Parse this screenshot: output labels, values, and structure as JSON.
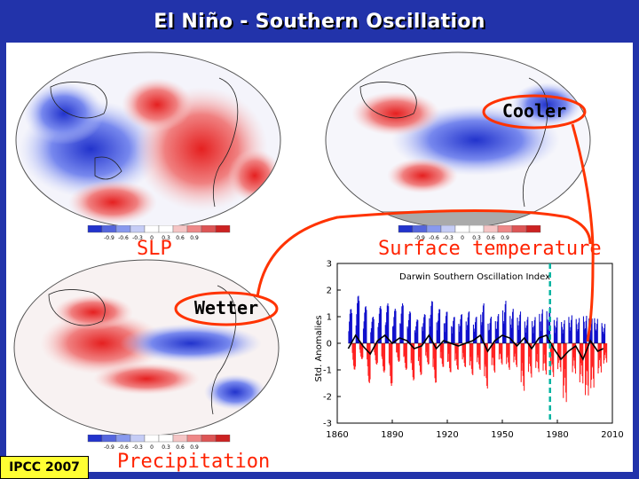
{
  "slide": {
    "title": "El Niño - Southern Oscillation",
    "credit": "IPCC 2007"
  },
  "colors": {
    "frame": "#2233aa",
    "label": "#ff2200",
    "positive_fill": "#ff2222",
    "negative_fill": "#1111cc",
    "dashed_line": "#00b3a0",
    "badge": "#ffff33"
  },
  "scale_ticks": [
    "-0.9",
    "-0.6",
    "-0.3",
    "0",
    "0.3",
    "0.6",
    "0.9"
  ],
  "panels": [
    {
      "label": "SLP"
    },
    {
      "label": "Surface temperature"
    },
    {
      "label": "Precipitation"
    }
  ],
  "callouts": {
    "cooler": "Cooler",
    "wetter": "Wetter"
  },
  "chart_data": {
    "type": "bar",
    "title": "Darwin Southern Oscillation Index",
    "ylabel": "Std. Anomalies",
    "xlabel": "",
    "xlim": [
      1860,
      2010
    ],
    "ylim": [
      -3,
      3
    ],
    "xticks": [
      1860,
      1890,
      1920,
      1950,
      1980,
      2010
    ],
    "yticks": [
      3,
      2,
      1,
      0,
      -1,
      -2,
      -3
    ],
    "x_tick_labels": [
      "1860",
      "1890",
      "1920",
      "1950",
      "1980",
      "2010"
    ],
    "y_tick_labels": [
      "3",
      "2",
      "1",
      "0",
      "-1",
      "-2",
      "-3"
    ],
    "marker_year": 1976,
    "series_note": "Monthly anomalies (positive = blue, negative = red) with smoothed black line; approximate values",
    "smoothed": [
      [
        1866,
        -0.2
      ],
      [
        1870,
        0.3
      ],
      [
        1874,
        -0.1
      ],
      [
        1878,
        -0.4
      ],
      [
        1882,
        0.1
      ],
      [
        1886,
        0.3
      ],
      [
        1890,
        0.0
      ],
      [
        1894,
        0.2
      ],
      [
        1898,
        0.1
      ],
      [
        1902,
        -0.2
      ],
      [
        1906,
        -0.1
      ],
      [
        1910,
        0.3
      ],
      [
        1914,
        -0.2
      ],
      [
        1918,
        0.1
      ],
      [
        1922,
        0.0
      ],
      [
        1926,
        -0.1
      ],
      [
        1930,
        0.0
      ],
      [
        1934,
        0.1
      ],
      [
        1938,
        0.3
      ],
      [
        1942,
        -0.3
      ],
      [
        1946,
        0.1
      ],
      [
        1950,
        0.3
      ],
      [
        1954,
        0.2
      ],
      [
        1958,
        -0.1
      ],
      [
        1962,
        0.2
      ],
      [
        1966,
        -0.2
      ],
      [
        1970,
        0.2
      ],
      [
        1974,
        0.3
      ],
      [
        1978,
        -0.2
      ],
      [
        1982,
        -0.6
      ],
      [
        1986,
        -0.3
      ],
      [
        1990,
        -0.1
      ],
      [
        1994,
        -0.6
      ],
      [
        1998,
        0.1
      ],
      [
        2002,
        -0.3
      ],
      [
        2005,
        -0.2
      ]
    ],
    "monthly_envelope": [
      [
        1866,
        1.3
      ],
      [
        1868,
        -1.0
      ],
      [
        1870,
        1.8
      ],
      [
        1872,
        -0.6
      ],
      [
        1874,
        1.4
      ],
      [
        1876,
        -1.5
      ],
      [
        1878,
        1.0
      ],
      [
        1880,
        -0.8
      ],
      [
        1882,
        1.4
      ],
      [
        1884,
        -1.1
      ],
      [
        1886,
        1.5
      ],
      [
        1888,
        -1.6
      ],
      [
        1890,
        1.3
      ],
      [
        1892,
        -0.7
      ],
      [
        1894,
        1.5
      ],
      [
        1896,
        -1.0
      ],
      [
        1898,
        1.2
      ],
      [
        1900,
        -1.4
      ],
      [
        1902,
        0.9
      ],
      [
        1904,
        -1.2
      ],
      [
        1906,
        1.1
      ],
      [
        1908,
        -0.8
      ],
      [
        1910,
        1.6
      ],
      [
        1912,
        -1.5
      ],
      [
        1914,
        1.3
      ],
      [
        1916,
        -0.9
      ],
      [
        1918,
        1.2
      ],
      [
        1920,
        -1.1
      ],
      [
        1922,
        1.0
      ],
      [
        1924,
        -1.0
      ],
      [
        1926,
        1.1
      ],
      [
        1928,
        -0.9
      ],
      [
        1930,
        1.2
      ],
      [
        1932,
        -1.2
      ],
      [
        1934,
        1.0
      ],
      [
        1936,
        -1.0
      ],
      [
        1938,
        1.5
      ],
      [
        1940,
        -1.7
      ],
      [
        1942,
        1.0
      ],
      [
        1944,
        -1.1
      ],
      [
        1946,
        1.1
      ],
      [
        1948,
        -0.8
      ],
      [
        1950,
        1.6
      ],
      [
        1952,
        -1.0
      ],
      [
        1954,
        1.3
      ],
      [
        1956,
        -0.9
      ],
      [
        1958,
        1.2
      ],
      [
        1960,
        -1.8
      ],
      [
        1962,
        1.0
      ],
      [
        1964,
        -1.3
      ],
      [
        1966,
        1.0
      ],
      [
        1968,
        -1.1
      ],
      [
        1970,
        1.3
      ],
      [
        1972,
        -1.2
      ],
      [
        1974,
        1.4
      ],
      [
        1976,
        -1.3
      ],
      [
        1978,
        1.0
      ],
      [
        1980,
        -1.1
      ],
      [
        1982,
        0.9
      ],
      [
        1983,
        -2.3
      ],
      [
        1986,
        1.1
      ],
      [
        1988,
        -1.2
      ],
      [
        1990,
        1.0
      ],
      [
        1992,
        -1.6
      ],
      [
        1994,
        1.1
      ],
      [
        1995,
        -2.1
      ],
      [
        1997,
        1.0
      ],
      [
        1998,
        -1.8
      ],
      [
        2000,
        1.0
      ],
      [
        2002,
        -1.2
      ],
      [
        2004,
        0.8
      ],
      [
        2005,
        -0.8
      ]
    ]
  }
}
